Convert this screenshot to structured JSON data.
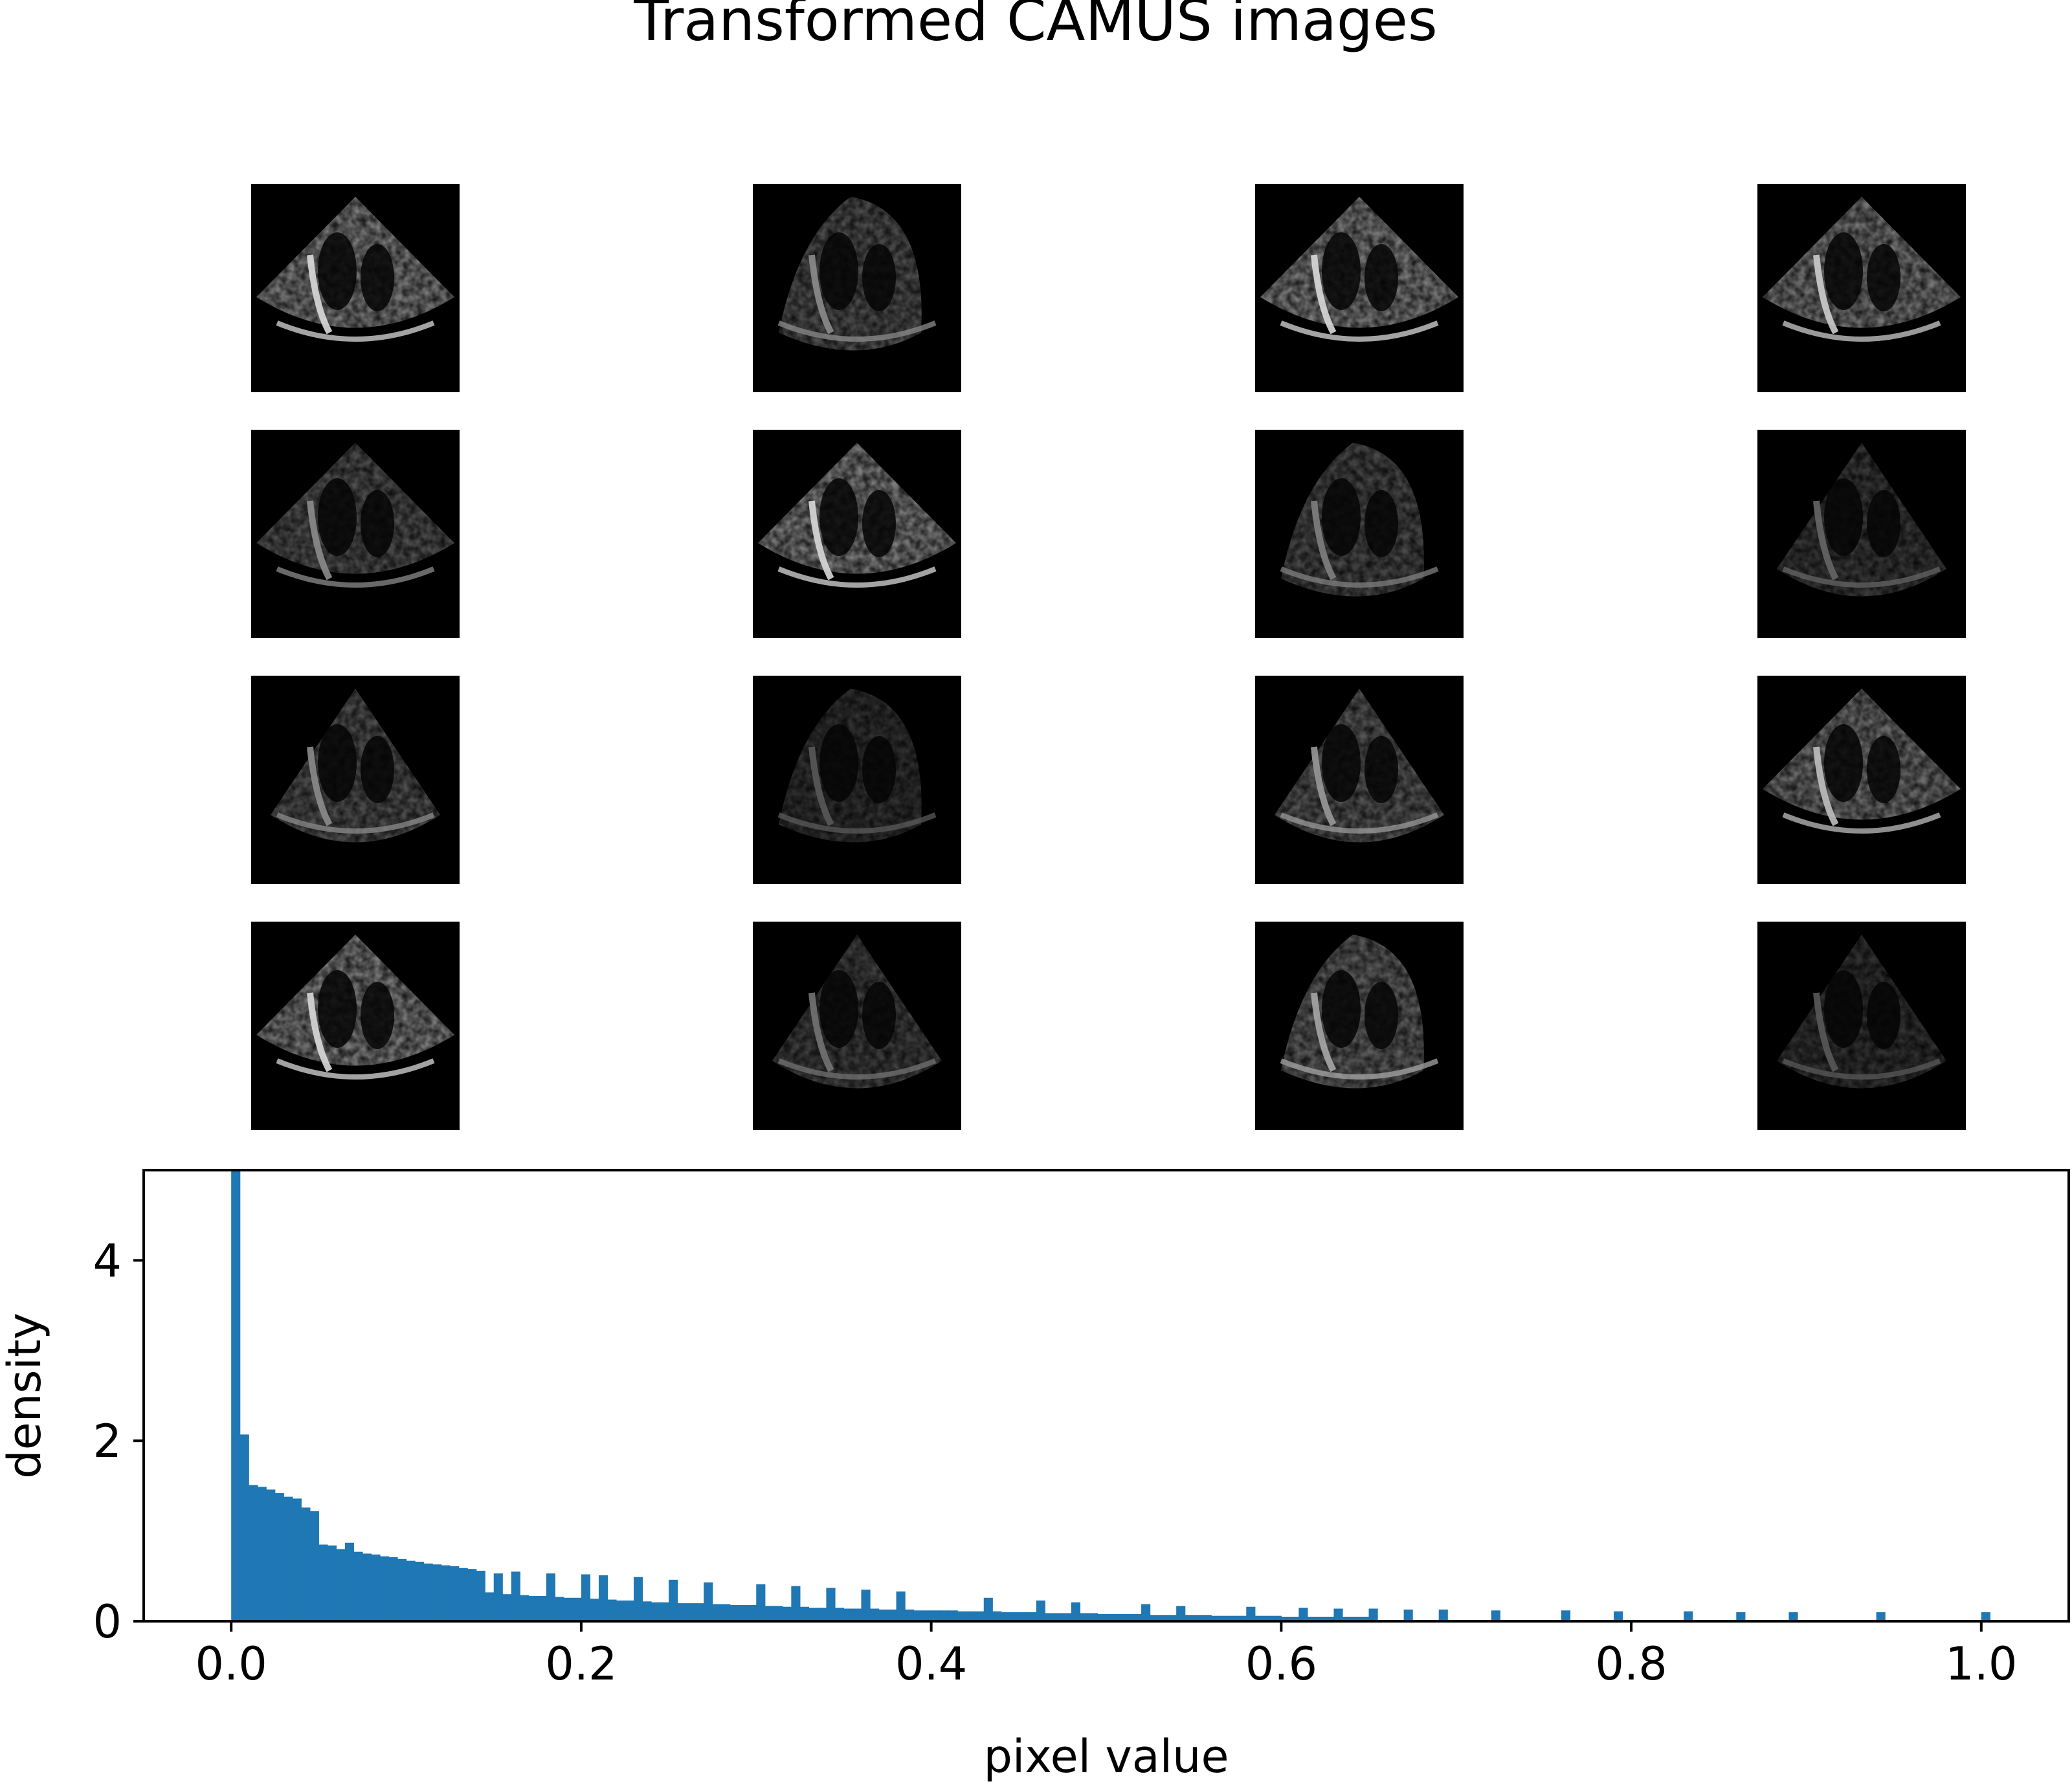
{
  "figure": {
    "title": "Transformed CAMUS images",
    "grid_rows": 4,
    "grid_cols": 4
  },
  "thumbnails": [
    {
      "shape": "wide",
      "brightness": 0.85
    },
    {
      "shape": "d",
      "brightness": 0.55
    },
    {
      "shape": "wide",
      "brightness": 0.85
    },
    {
      "shape": "wide",
      "brightness": 0.8
    },
    {
      "shape": "wide",
      "brightness": 0.55
    },
    {
      "shape": "wide",
      "brightness": 0.85
    },
    {
      "shape": "d",
      "brightness": 0.5
    },
    {
      "shape": "narrow",
      "brightness": 0.4
    },
    {
      "shape": "narrow",
      "brightness": 0.55
    },
    {
      "shape": "d",
      "brightness": 0.35
    },
    {
      "shape": "narrow",
      "brightness": 0.6
    },
    {
      "shape": "wide",
      "brightness": 0.75
    },
    {
      "shape": "wide",
      "brightness": 0.85
    },
    {
      "shape": "narrow",
      "brightness": 0.45
    },
    {
      "shape": "d",
      "brightness": 0.65
    },
    {
      "shape": "narrow",
      "brightness": 0.35
    }
  ],
  "chart_data": {
    "type": "bar",
    "subtype": "histogram",
    "xlabel": "pixel value",
    "ylabel": "density",
    "xlim": [
      -0.05,
      1.05
    ],
    "ylim": [
      0,
      5
    ],
    "xticks": [
      "0.0",
      "0.2",
      "0.4",
      "0.6",
      "0.8",
      "1.0"
    ],
    "yticks": [
      "0",
      "2",
      "4"
    ],
    "bar_color": "#1f77b4",
    "bin_width": 0.005,
    "bins_start": 0.0,
    "values": [
      5.0,
      2.07,
      1.51,
      1.49,
      1.46,
      1.42,
      1.38,
      1.36,
      1.26,
      1.22,
      0.85,
      0.84,
      0.8,
      0.79,
      0.77,
      0.75,
      0.74,
      0.72,
      0.71,
      0.69,
      0.67,
      0.66,
      0.64,
      0.63,
      0.62,
      0.61,
      0.59,
      0.58,
      0.56,
      0.32,
      0.53,
      0.3,
      0.29,
      0.29,
      0.28,
      0.28,
      0.27,
      0.27,
      0.26,
      0.26,
      0.25,
      0.25,
      0.24,
      0.24,
      0.23,
      0.23,
      0.22,
      0.22,
      0.21,
      0.21,
      0.21,
      0.2,
      0.2,
      0.2,
      0.19,
      0.19,
      0.19,
      0.18,
      0.18,
      0.18,
      0.17,
      0.17,
      0.17,
      0.16,
      0.16,
      0.16,
      0.15,
      0.15,
      0.15,
      0.15,
      0.14,
      0.14,
      0.14,
      0.14,
      0.13,
      0.13,
      0.13,
      0.13,
      0.12,
      0.12,
      0.12,
      0.12,
      0.12,
      0.11,
      0.11,
      0.11,
      0.11,
      0.11,
      0.1,
      0.1,
      0.1,
      0.1,
      0.1,
      0.09,
      0.09,
      0.09,
      0.09,
      0.09,
      0.09,
      0.08,
      0.08,
      0.08,
      0.08,
      0.08,
      0.08,
      0.07,
      0.07,
      0.07,
      0.07,
      0.07,
      0.07,
      0.07,
      0.06,
      0.06,
      0.06,
      0.06,
      0.06,
      0.06,
      0.06,
      0.06,
      0.05,
      0.05,
      0.05,
      0.05,
      0.05,
      0.05,
      0.05,
      0.05,
      0.05,
      0.05
    ],
    "spikes": [
      {
        "x": 0.065,
        "y": 0.87
      },
      {
        "x": 0.14,
        "y": 0.31
      },
      {
        "x": 0.16,
        "y": 0.55
      },
      {
        "x": 0.18,
        "y": 0.53
      },
      {
        "x": 0.2,
        "y": 0.52
      },
      {
        "x": 0.21,
        "y": 0.51
      },
      {
        "x": 0.23,
        "y": 0.49
      },
      {
        "x": 0.25,
        "y": 0.46
      },
      {
        "x": 0.27,
        "y": 0.43
      },
      {
        "x": 0.3,
        "y": 0.41
      },
      {
        "x": 0.32,
        "y": 0.39
      },
      {
        "x": 0.34,
        "y": 0.37
      },
      {
        "x": 0.36,
        "y": 0.35
      },
      {
        "x": 0.38,
        "y": 0.33
      },
      {
        "x": 0.43,
        "y": 0.26
      },
      {
        "x": 0.46,
        "y": 0.23
      },
      {
        "x": 0.48,
        "y": 0.21
      },
      {
        "x": 0.52,
        "y": 0.19
      },
      {
        "x": 0.54,
        "y": 0.17
      },
      {
        "x": 0.58,
        "y": 0.16
      },
      {
        "x": 0.61,
        "y": 0.15
      },
      {
        "x": 0.63,
        "y": 0.14
      },
      {
        "x": 0.65,
        "y": 0.14
      },
      {
        "x": 0.67,
        "y": 0.13
      },
      {
        "x": 0.69,
        "y": 0.13
      },
      {
        "x": 0.72,
        "y": 0.12
      },
      {
        "x": 0.76,
        "y": 0.12
      },
      {
        "x": 0.79,
        "y": 0.11
      },
      {
        "x": 0.83,
        "y": 0.11
      },
      {
        "x": 0.86,
        "y": 0.1
      },
      {
        "x": 0.89,
        "y": 0.1
      },
      {
        "x": 0.94,
        "y": 0.1
      },
      {
        "x": 1.0,
        "y": 0.1
      }
    ]
  }
}
